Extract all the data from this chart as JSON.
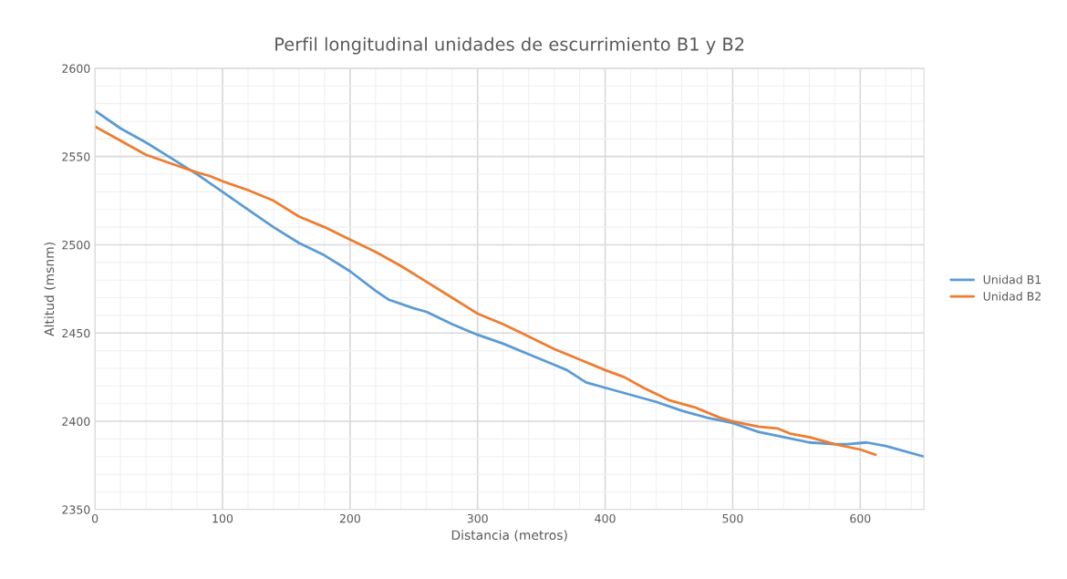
{
  "chart_data": {
    "type": "line",
    "title": "Perfil longitudinal unidades de escurrimiento B1 y B2",
    "xlabel": "Distancia (metros)",
    "ylabel": "Altitud (msnm)",
    "xlim": [
      0,
      650
    ],
    "ylim": [
      2350,
      2600
    ],
    "xticks": [
      0,
      {
        "value": 20,
        "label": null
      },
      {
        "value": 40,
        "label": null
      },
      {
        "value": 60,
        "label": null
      },
      {
        "value": 80,
        "label": null
      },
      100,
      {
        "value": 120,
        "label": null
      },
      {
        "value": 140,
        "label": null
      },
      {
        "value": 160,
        "label": null
      },
      {
        "value": 180,
        "label": null
      },
      200,
      {
        "value": 220,
        "label": null
      },
      {
        "value": 240,
        "label": null
      },
      {
        "value": 260,
        "label": null
      },
      {
        "value": 280,
        "label": null
      },
      300,
      {
        "value": 320,
        "label": null
      },
      {
        "value": 340,
        "label": null
      },
      {
        "value": 360,
        "label": null
      },
      {
        "value": 380,
        "label": null
      },
      400,
      {
        "value": 420,
        "label": null
      },
      {
        "value": 440,
        "label": null
      },
      {
        "value": 460,
        "label": null
      },
      {
        "value": 480,
        "label": null
      },
      500,
      {
        "value": 520,
        "label": null
      },
      {
        "value": 540,
        "label": null
      },
      {
        "value": 560,
        "label": null
      },
      {
        "value": 580,
        "label": null
      },
      600,
      {
        "value": 620,
        "label": null
      },
      {
        "value": 640,
        "label": null
      }
    ],
    "yticks": [
      2350,
      {
        "value": 2360,
        "label": null
      },
      {
        "value": 2370,
        "label": null
      },
      {
        "value": 2380,
        "label": null
      },
      {
        "value": 2390,
        "label": null
      },
      2400,
      {
        "value": 2410,
        "label": null
      },
      {
        "value": 2420,
        "label": null
      },
      {
        "value": 2430,
        "label": null
      },
      {
        "value": 2440,
        "label": null
      },
      2450,
      {
        "value": 2460,
        "label": null
      },
      {
        "value": 2470,
        "label": null
      },
      {
        "value": 2480,
        "label": null
      },
      {
        "value": 2490,
        "label": null
      },
      2500,
      {
        "value": 2510,
        "label": null
      },
      {
        "value": 2520,
        "label": null
      },
      {
        "value": 2530,
        "label": null
      },
      {
        "value": 2540,
        "label": null
      },
      2550,
      {
        "value": 2560,
        "label": null
      },
      {
        "value": 2570,
        "label": null
      },
      {
        "value": 2580,
        "label": null
      },
      {
        "value": 2590,
        "label": null
      },
      2600
    ],
    "grid": true,
    "legend": "right",
    "series": [
      {
        "name": "Unidad B1",
        "color": "#5b9bd5",
        "x": [
          0,
          20,
          40,
          60,
          80,
          100,
          120,
          140,
          160,
          180,
          200,
          220,
          230,
          250,
          260,
          280,
          300,
          320,
          340,
          360,
          370,
          385,
          400,
          420,
          440,
          460,
          480,
          500,
          520,
          540,
          560,
          580,
          590,
          605,
          620,
          650
        ],
        "values": [
          2576,
          2566,
          2558,
          2549,
          2540,
          2530,
          2520,
          2510,
          2501,
          2494,
          2485,
          2474,
          2469,
          2464,
          2462,
          2455,
          2449,
          2444,
          2438,
          2432,
          2429,
          2422,
          2419,
          2415,
          2411,
          2406,
          2402,
          2399,
          2394,
          2391,
          2388,
          2387,
          2387,
          2388,
          2386,
          2380
        ]
      },
      {
        "name": "Unidad B2",
        "color": "#ed7d31",
        "x": [
          0,
          20,
          40,
          60,
          80,
          90,
          100,
          120,
          140,
          160,
          180,
          200,
          220,
          240,
          260,
          280,
          300,
          320,
          340,
          360,
          380,
          400,
          415,
          430,
          450,
          470,
          490,
          500,
          520,
          535,
          545,
          560,
          580,
          600,
          612
        ],
        "values": [
          2567,
          2559,
          2551,
          2546,
          2541,
          2539,
          2536,
          2531,
          2525,
          2516,
          2510,
          2503,
          2496,
          2488,
          2479,
          2470,
          2461,
          2455,
          2448,
          2441,
          2435,
          2429,
          2425,
          2419,
          2412,
          2408,
          2402,
          2400,
          2397,
          2396,
          2393,
          2391,
          2387,
          2384,
          2381
        ]
      }
    ]
  }
}
